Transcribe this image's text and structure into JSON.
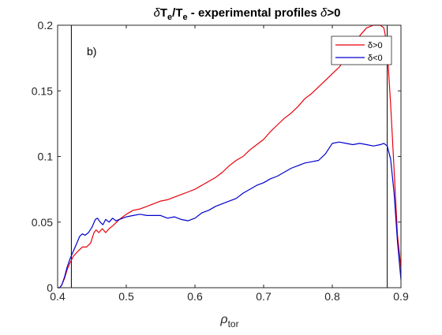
{
  "chart_data": {
    "type": "line",
    "title": {
      "delta": "δ",
      "t1": "T",
      "sub1": "e",
      "slash": "/T",
      "sub2": "e",
      "rest": " - experimental profiles ",
      "delta2": "δ",
      "tail": ">0"
    },
    "xlabel": {
      "symbol": "ρ",
      "sub": "tor"
    },
    "ylabel": "",
    "annotation": "b)",
    "xlim": [
      0.4,
      0.9
    ],
    "ylim": [
      0,
      0.2
    ],
    "xticks": [
      0.4,
      0.5,
      0.6,
      0.7,
      0.8,
      0.9
    ],
    "xtick_labels": [
      "0.4",
      "0.5",
      "0.6",
      "0.7",
      "0.8",
      "0.9"
    ],
    "yticks": [
      0,
      0.05,
      0.1,
      0.15,
      0.2
    ],
    "ytick_labels": [
      "0",
      "0.05",
      "0.1",
      "0.15",
      "0.2"
    ],
    "grid": false,
    "legend_position": "top-right",
    "vertical_lines": [
      0.42,
      0.88
    ],
    "series": [
      {
        "name": "δ>0",
        "color": "#e8000b",
        "x": [
          0.4,
          0.403,
          0.406,
          0.41,
          0.414,
          0.418,
          0.423,
          0.43,
          0.436,
          0.442,
          0.448,
          0.453,
          0.456,
          0.46,
          0.465,
          0.47,
          0.475,
          0.48,
          0.49,
          0.5,
          0.51,
          0.52,
          0.53,
          0.54,
          0.55,
          0.56,
          0.57,
          0.58,
          0.59,
          0.6,
          0.61,
          0.62,
          0.63,
          0.64,
          0.65,
          0.66,
          0.67,
          0.68,
          0.69,
          0.7,
          0.71,
          0.72,
          0.73,
          0.74,
          0.75,
          0.76,
          0.77,
          0.78,
          0.79,
          0.8,
          0.81,
          0.82,
          0.83,
          0.84,
          0.85,
          0.86,
          0.87,
          0.875,
          0.88,
          0.882,
          0.885,
          0.89,
          0.895,
          0.9
        ],
        "y": [
          0.0,
          0.0,
          0.002,
          0.007,
          0.014,
          0.019,
          0.024,
          0.028,
          0.031,
          0.031,
          0.034,
          0.042,
          0.044,
          0.042,
          0.045,
          0.042,
          0.045,
          0.047,
          0.052,
          0.056,
          0.059,
          0.06,
          0.062,
          0.064,
          0.066,
          0.067,
          0.069,
          0.071,
          0.073,
          0.075,
          0.078,
          0.081,
          0.084,
          0.088,
          0.093,
          0.097,
          0.1,
          0.105,
          0.109,
          0.113,
          0.119,
          0.124,
          0.129,
          0.133,
          0.138,
          0.144,
          0.148,
          0.153,
          0.158,
          0.163,
          0.168,
          0.175,
          0.185,
          0.192,
          0.198,
          0.2,
          0.2,
          0.198,
          0.185,
          0.165,
          0.14,
          0.09,
          0.04,
          0.015
        ]
      },
      {
        "name": "δ<0",
        "color": "#0000cc",
        "x": [
          0.4,
          0.403,
          0.406,
          0.41,
          0.414,
          0.418,
          0.423,
          0.428,
          0.432,
          0.436,
          0.44,
          0.445,
          0.45,
          0.455,
          0.458,
          0.462,
          0.466,
          0.47,
          0.475,
          0.48,
          0.485,
          0.49,
          0.5,
          0.51,
          0.52,
          0.53,
          0.54,
          0.55,
          0.56,
          0.57,
          0.58,
          0.59,
          0.6,
          0.61,
          0.62,
          0.63,
          0.64,
          0.65,
          0.66,
          0.67,
          0.68,
          0.69,
          0.7,
          0.71,
          0.72,
          0.73,
          0.74,
          0.75,
          0.76,
          0.77,
          0.78,
          0.79,
          0.8,
          0.81,
          0.82,
          0.83,
          0.84,
          0.85,
          0.86,
          0.87,
          0.875,
          0.88,
          0.885,
          0.89,
          0.895,
          0.9
        ],
        "y": [
          0.0,
          0.0,
          0.002,
          0.008,
          0.016,
          0.022,
          0.028,
          0.034,
          0.039,
          0.041,
          0.04,
          0.042,
          0.046,
          0.052,
          0.053,
          0.05,
          0.048,
          0.052,
          0.05,
          0.053,
          0.051,
          0.052,
          0.054,
          0.055,
          0.056,
          0.055,
          0.055,
          0.055,
          0.053,
          0.054,
          0.052,
          0.051,
          0.053,
          0.057,
          0.059,
          0.062,
          0.064,
          0.066,
          0.068,
          0.072,
          0.075,
          0.078,
          0.08,
          0.083,
          0.085,
          0.088,
          0.091,
          0.093,
          0.095,
          0.096,
          0.097,
          0.102,
          0.11,
          0.111,
          0.11,
          0.109,
          0.11,
          0.109,
          0.108,
          0.109,
          0.11,
          0.108,
          0.098,
          0.072,
          0.035,
          0.006
        ]
      }
    ]
  }
}
